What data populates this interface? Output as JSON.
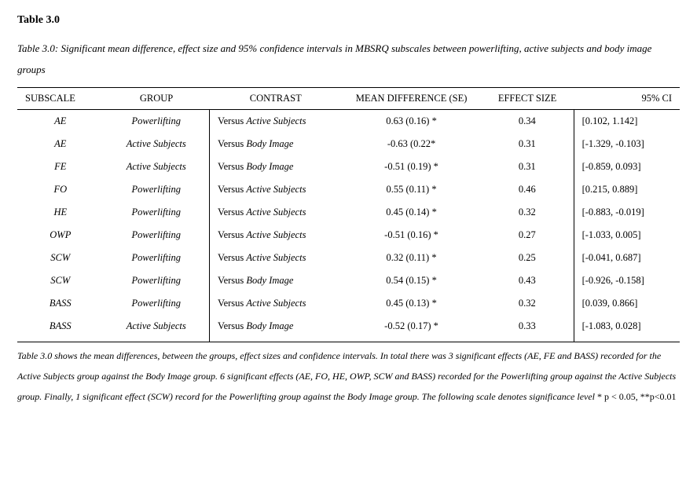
{
  "title": "Table 3.0",
  "caption": "Table 3.0: Significant mean difference, effect size and 95% confidence intervals in MBSRQ subscales between powerlifting, active subjects and body image groups",
  "columns": {
    "subscale": "SUBSCALE",
    "group": "GROUP",
    "contrast": "CONTRAST",
    "mean_diff": "MEAN DIFFERENCE (SE)",
    "effect_size": "EFFECT SIZE",
    "ci": "95% CI"
  },
  "versus_word": "Versus ",
  "rows": [
    {
      "subscale": "AE",
      "group": "Powerlifting",
      "contrast_target": "Active Subjects",
      "mean_diff": "0.63 (0.16) *",
      "effect_size": "0.34",
      "ci": "[0.102, 1.142]"
    },
    {
      "subscale": "AE",
      "group": "Active Subjects",
      "contrast_target": "Body Image",
      "mean_diff": "-0.63 (0.22*",
      "effect_size": "0.31",
      "ci": "[-1.329, -0.103]"
    },
    {
      "subscale": "FE",
      "group": "Active Subjects",
      "contrast_target": "Body Image",
      "mean_diff": "-0.51 (0.19) *",
      "effect_size": "0.31",
      "ci": "[-0.859, 0.093]"
    },
    {
      "subscale": "FO",
      "group": "Powerlifting",
      "contrast_target": "Active Subjects",
      "mean_diff": "0.55 (0.11) *",
      "effect_size": "0.46",
      "ci": "[0.215, 0.889]"
    },
    {
      "subscale": "HE",
      "group": "Powerlifting",
      "contrast_target": "Active Subjects",
      "mean_diff": "0.45 (0.14) *",
      "effect_size": "0.32",
      "ci": "[-0.883, -0.019]"
    },
    {
      "subscale": "OWP",
      "group": "Powerlifting",
      "contrast_target": "Active Subjects",
      "mean_diff": "-0.51 (0.16) *",
      "effect_size": "0.27",
      "ci": "[-1.033, 0.005]"
    },
    {
      "subscale": "SCW",
      "group": "Powerlifting",
      "contrast_target": "Active Subjects",
      "mean_diff": "0.32 (0.11) *",
      "effect_size": "0.25",
      "ci": "[-0.041, 0.687]"
    },
    {
      "subscale": "SCW",
      "group": "Powerlifting",
      "contrast_target": "Body Image",
      "mean_diff": "0.54 (0.15) *",
      "effect_size": "0.43",
      "ci": "[-0.926, -0.158]"
    },
    {
      "subscale": "BASS",
      "group": "Powerlifting",
      "contrast_target": "Active Subjects",
      "mean_diff": "0.45 (0.13) *",
      "effect_size": "0.32",
      "ci": "[0.039, 0.866]"
    },
    {
      "subscale": "BASS",
      "group": "Active Subjects",
      "contrast_target": "Body Image",
      "mean_diff": "-0.52 (0.17) *",
      "effect_size": "0.33",
      "ci": "[-1.083, 0.028]"
    }
  ],
  "footnote_italic": "Table 3.0 shows the mean differences, between the groups, effect sizes and confidence intervals. In total there was 3 significant effects (AE, FE and BASS) recorded for the Active Subjects group against the Body Image group. 6 significant effects (AE, FO, HE, OWP, SCW and BASS) recorded for the Powerlifting group against the Active Subjects group. Finally, 1 significant effect (SCW) record for the Powerlifting group against the Body Image group. The following scale denotes significance level ",
  "footnote_sig": "* p < 0.05, **p<0.01"
}
